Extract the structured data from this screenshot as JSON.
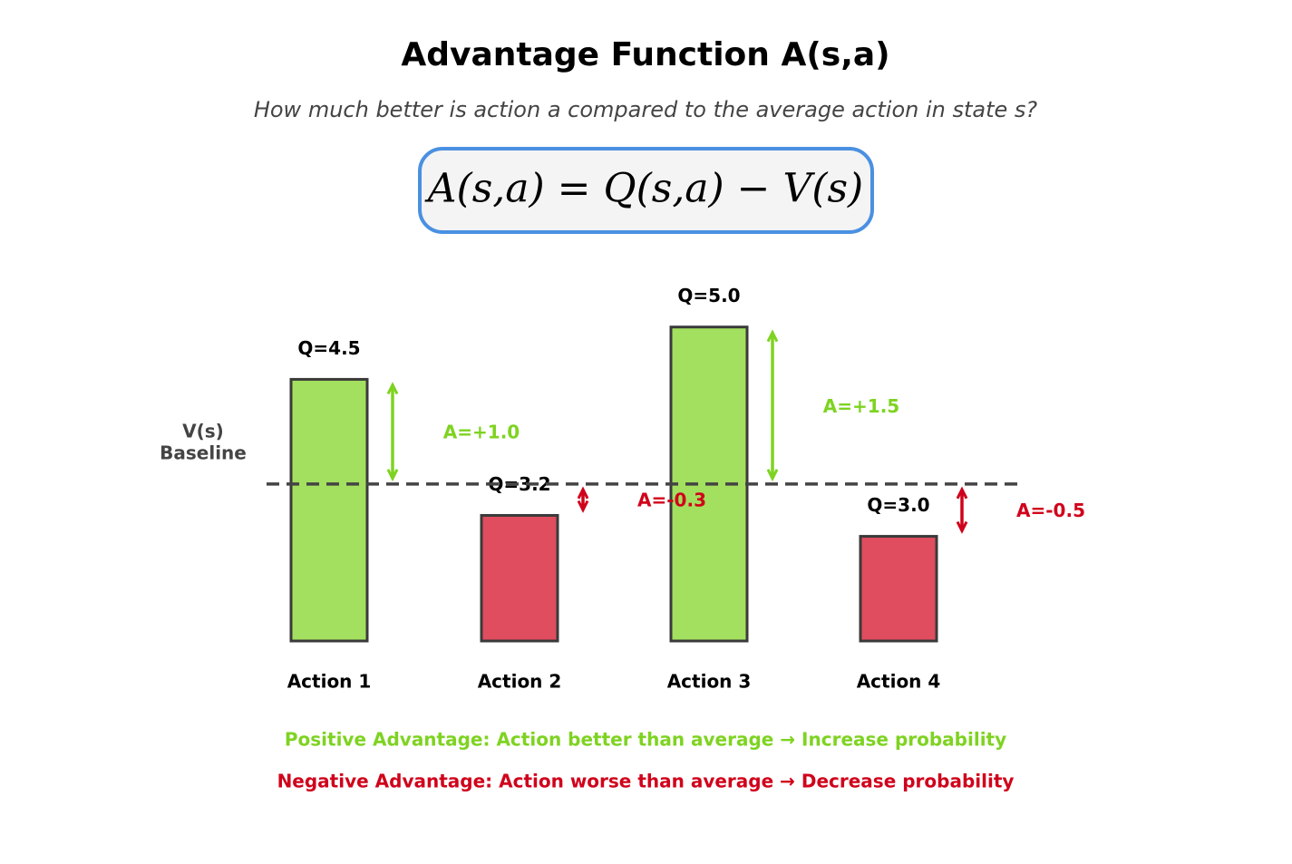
{
  "chart_data": {
    "type": "bar",
    "title": "Advantage Function A(s,a)",
    "subtitle": "How much better is action a compared to the average action in state s?",
    "formula": "A(s,a) = Q(s,a) − V(s)",
    "categories": [
      "Action 1",
      "Action 2",
      "Action 3",
      "Action 4"
    ],
    "values": [
      4.5,
      3.2,
      5.0,
      3.0
    ],
    "value_labels": [
      "Q=4.5",
      "Q=3.2",
      "Q=5.0",
      "Q=3.0"
    ],
    "baseline": 3.5,
    "baseline_label": [
      "V(s)",
      "Baseline"
    ],
    "advantages": [
      1.0,
      -0.3,
      1.5,
      -0.5
    ],
    "advantage_labels": [
      "A=+1.0",
      "A=-0.3",
      "A=+1.5",
      "A=-0.5"
    ],
    "positive_color": "#7ed321",
    "negative_color": "#d0021b",
    "positive_fill": "#a3e05f",
    "negative_fill": "#e04d5e",
    "ylim": [
      2,
      5.5
    ],
    "notes": [
      "Positive Advantage: Action better than average → Increase probability",
      "Negative Advantage: Action worse than average → Decrease probability"
    ]
  }
}
